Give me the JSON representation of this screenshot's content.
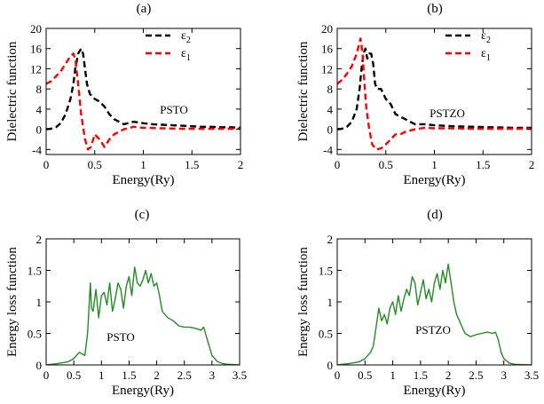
{
  "chart_data": [
    {
      "type": "line",
      "panel_label": "(a)",
      "title": "",
      "xlabel": "Energy(Ry)",
      "ylabel": "Dielectric function",
      "xlim": [
        0,
        2
      ],
      "ylim": [
        -5,
        20
      ],
      "xticks": [
        0,
        0.5,
        1,
        1.5,
        2
      ],
      "xtick_labels": [
        "0",
        "0.5",
        "1",
        "1.5",
        "2"
      ],
      "yticks": [
        -4,
        0,
        4,
        8,
        12,
        16,
        20
      ],
      "ytick_labels": [
        "-4",
        "0",
        "4",
        "8",
        "12",
        "16",
        "20"
      ],
      "annotation": "PSTO",
      "legend_position": "top-right",
      "series": [
        {
          "name": "ε₂",
          "legend_main": "ε",
          "legend_sub": "2",
          "color": "#000000",
          "dash": "dashed",
          "x": [
            0,
            0.05,
            0.1,
            0.15,
            0.2,
            0.25,
            0.28,
            0.3,
            0.33,
            0.36,
            0.38,
            0.4,
            0.42,
            0.45,
            0.5,
            0.55,
            0.6,
            0.65,
            0.7,
            0.8,
            0.9,
            1.0,
            1.1,
            1.2,
            1.3,
            1.4,
            1.5,
            1.6,
            1.7,
            1.8,
            1.9,
            2.0
          ],
          "y": [
            0,
            0.1,
            0.4,
            1.2,
            3,
            6,
            9,
            12,
            15,
            16,
            15,
            12,
            9,
            7,
            6,
            5.5,
            4.5,
            3,
            2,
            1,
            1.5,
            1.2,
            1.0,
            0.9,
            0.8,
            0.7,
            0.6,
            0.5,
            0.5,
            0.4,
            0.4,
            0.3
          ]
        },
        {
          "name": "ε₁",
          "legend_main": "ε",
          "legend_sub": "1",
          "color": "#ff0000",
          "dash": "dashed",
          "x": [
            0,
            0.05,
            0.1,
            0.15,
            0.2,
            0.25,
            0.28,
            0.3,
            0.33,
            0.36,
            0.4,
            0.43,
            0.46,
            0.5,
            0.55,
            0.6,
            0.65,
            0.7,
            0.8,
            0.9,
            1.0,
            1.2,
            1.4,
            1.6,
            1.8,
            2.0
          ],
          "y": [
            9,
            9.5,
            10.5,
            11.5,
            13,
            14.5,
            15,
            14,
            9,
            3,
            -2,
            -4,
            -3.5,
            -1,
            -2,
            -3.5,
            -2,
            -1,
            0,
            0.5,
            0.3,
            0.2,
            0.1,
            0.1,
            0.1,
            0.1
          ]
        }
      ]
    },
    {
      "type": "line",
      "panel_label": "(b)",
      "title": "",
      "xlabel": "Energy(Ry)",
      "ylabel": "Dielectric  function",
      "xlim": [
        0,
        2
      ],
      "ylim": [
        -5,
        20
      ],
      "xticks": [
        0,
        0.5,
        1,
        1.5,
        2
      ],
      "xtick_labels": [
        "0",
        "0.5",
        "1",
        "1.5",
        "2"
      ],
      "yticks": [
        -4,
        0,
        4,
        8,
        12,
        16,
        20
      ],
      "ytick_labels": [
        "-4",
        "0",
        "4",
        "8",
        "12",
        "16",
        "20"
      ],
      "annotation": "PSTZO",
      "legend_position": "top-right",
      "series": [
        {
          "name": "ε₂",
          "legend_main": "ε",
          "legend_sub": "2",
          "color": "#000000",
          "dash": "dashed",
          "x": [
            0,
            0.05,
            0.1,
            0.15,
            0.2,
            0.23,
            0.25,
            0.27,
            0.29,
            0.31,
            0.33,
            0.35,
            0.37,
            0.39,
            0.41,
            0.45,
            0.5,
            0.55,
            0.6,
            0.65,
            0.7,
            0.8,
            0.9,
            1.0,
            1.2,
            1.4,
            1.6,
            1.8,
            2.0
          ],
          "y": [
            0,
            0.1,
            0.5,
            1.5,
            4,
            8,
            12,
            15,
            16,
            14,
            15,
            15,
            13,
            9,
            8,
            8,
            6,
            5,
            3,
            2.5,
            2,
            1,
            1,
            0.8,
            0.6,
            0.5,
            0.4,
            0.3,
            0.3
          ]
        },
        {
          "name": "ε₁",
          "legend_main": "ε",
          "legend_sub": "1",
          "color": "#ff0000",
          "dash": "dashed",
          "x": [
            0,
            0.05,
            0.1,
            0.15,
            0.18,
            0.2,
            0.22,
            0.24,
            0.26,
            0.28,
            0.3,
            0.33,
            0.36,
            0.4,
            0.45,
            0.5,
            0.55,
            0.6,
            0.65,
            0.7,
            0.8,
            0.9,
            1.0,
            1.2,
            1.4,
            1.6,
            1.8,
            2.0
          ],
          "y": [
            9,
            9.8,
            11,
            12.5,
            14,
            15,
            16.5,
            18,
            15,
            9,
            4,
            0,
            -3,
            -4,
            -3.8,
            -3,
            -2,
            -1,
            -1,
            -0.5,
            0,
            0.3,
            0.2,
            0.2,
            0.1,
            0.1,
            0.1,
            0.1
          ]
        }
      ]
    },
    {
      "type": "line",
      "panel_label": "(c)",
      "title": "",
      "xlabel": "Energy(Ry)",
      "ylabel": "Energy loss function",
      "xlim": [
        0,
        3.5
      ],
      "ylim": [
        0,
        2
      ],
      "xticks": [
        0,
        0.5,
        1,
        1.5,
        2,
        2.5,
        3,
        3.5
      ],
      "xtick_labels": [
        "0",
        "0.5",
        "1",
        "1.5",
        "2",
        "2.5",
        "3",
        "3.5"
      ],
      "yticks": [
        0,
        0.5,
        1,
        1.5,
        2
      ],
      "ytick_labels": [
        "0",
        "0.5",
        "1",
        "1.5",
        "2"
      ],
      "annotation": "PSTO",
      "series": [
        {
          "name": "PSTO",
          "color": "#228b22",
          "dash": "solid",
          "x": [
            0,
            0.2,
            0.4,
            0.5,
            0.6,
            0.7,
            0.75,
            0.8,
            0.82,
            0.85,
            0.9,
            0.95,
            1.0,
            1.05,
            1.1,
            1.15,
            1.2,
            1.25,
            1.3,
            1.35,
            1.4,
            1.45,
            1.5,
            1.55,
            1.6,
            1.65,
            1.7,
            1.75,
            1.8,
            1.85,
            1.9,
            1.95,
            2.0,
            2.05,
            2.1,
            2.2,
            2.3,
            2.4,
            2.5,
            2.6,
            2.7,
            2.8,
            2.85,
            2.9,
            2.95,
            3.0,
            3.1,
            3.2,
            3.3,
            3.5
          ],
          "y": [
            0,
            0.02,
            0.05,
            0.1,
            0.2,
            0.15,
            0.5,
            1.3,
            0.9,
            0.85,
            1.2,
            0.75,
            1.1,
            1.15,
            0.95,
            1.3,
            0.85,
            1.05,
            1.3,
            1.2,
            0.9,
            1.25,
            1.4,
            1.1,
            1.55,
            1.3,
            1.25,
            1.35,
            1.5,
            1.3,
            1.45,
            1.25,
            1.3,
            1.1,
            0.85,
            0.75,
            0.7,
            0.62,
            0.6,
            0.6,
            0.58,
            0.55,
            0.6,
            0.45,
            0.3,
            0.15,
            0.05,
            0.02,
            0.01,
            0
          ]
        }
      ]
    },
    {
      "type": "line",
      "panel_label": "(d)",
      "title": "",
      "xlabel": "Energy(Ry)",
      "ylabel": "Energy loss function",
      "xlim": [
        0,
        3.5
      ],
      "ylim": [
        0,
        2
      ],
      "xticks": [
        0,
        0.5,
        1,
        1.5,
        2,
        2.5,
        3,
        3.5
      ],
      "xtick_labels": [
        "0",
        "0.5",
        "1",
        "1.5",
        "2",
        "2.5",
        "3",
        "3.5"
      ],
      "yticks": [
        0,
        0.5,
        1,
        1.5,
        2
      ],
      "ytick_labels": [
        "0",
        "0.5",
        "1",
        "1.5",
        "2"
      ],
      "annotation": "PSTZO",
      "series": [
        {
          "name": "PSTZO",
          "color": "#228b22",
          "dash": "solid",
          "x": [
            0,
            0.2,
            0.4,
            0.5,
            0.6,
            0.65,
            0.7,
            0.75,
            0.8,
            0.85,
            0.9,
            0.95,
            1.0,
            1.05,
            1.1,
            1.15,
            1.2,
            1.25,
            1.3,
            1.35,
            1.4,
            1.45,
            1.5,
            1.55,
            1.6,
            1.65,
            1.7,
            1.75,
            1.8,
            1.85,
            1.9,
            1.95,
            2.0,
            2.05,
            2.1,
            2.15,
            2.2,
            2.3,
            2.4,
            2.5,
            2.6,
            2.7,
            2.8,
            2.85,
            2.9,
            2.95,
            3.0,
            3.1,
            3.2,
            3.5
          ],
          "y": [
            0,
            0.02,
            0.05,
            0.1,
            0.2,
            0.3,
            0.6,
            0.9,
            0.7,
            0.8,
            0.65,
            0.9,
            1.0,
            0.8,
            1.1,
            0.85,
            1.05,
            1.2,
            1.1,
            1.4,
            1.3,
            0.95,
            1.15,
            1.35,
            1.05,
            1.2,
            1.0,
            1.3,
            1.45,
            1.2,
            1.5,
            1.3,
            1.6,
            1.3,
            1.0,
            0.8,
            0.7,
            0.5,
            0.45,
            0.48,
            0.5,
            0.52,
            0.5,
            0.52,
            0.4,
            0.2,
            0.1,
            0.03,
            0.01,
            0
          ]
        }
      ]
    }
  ]
}
